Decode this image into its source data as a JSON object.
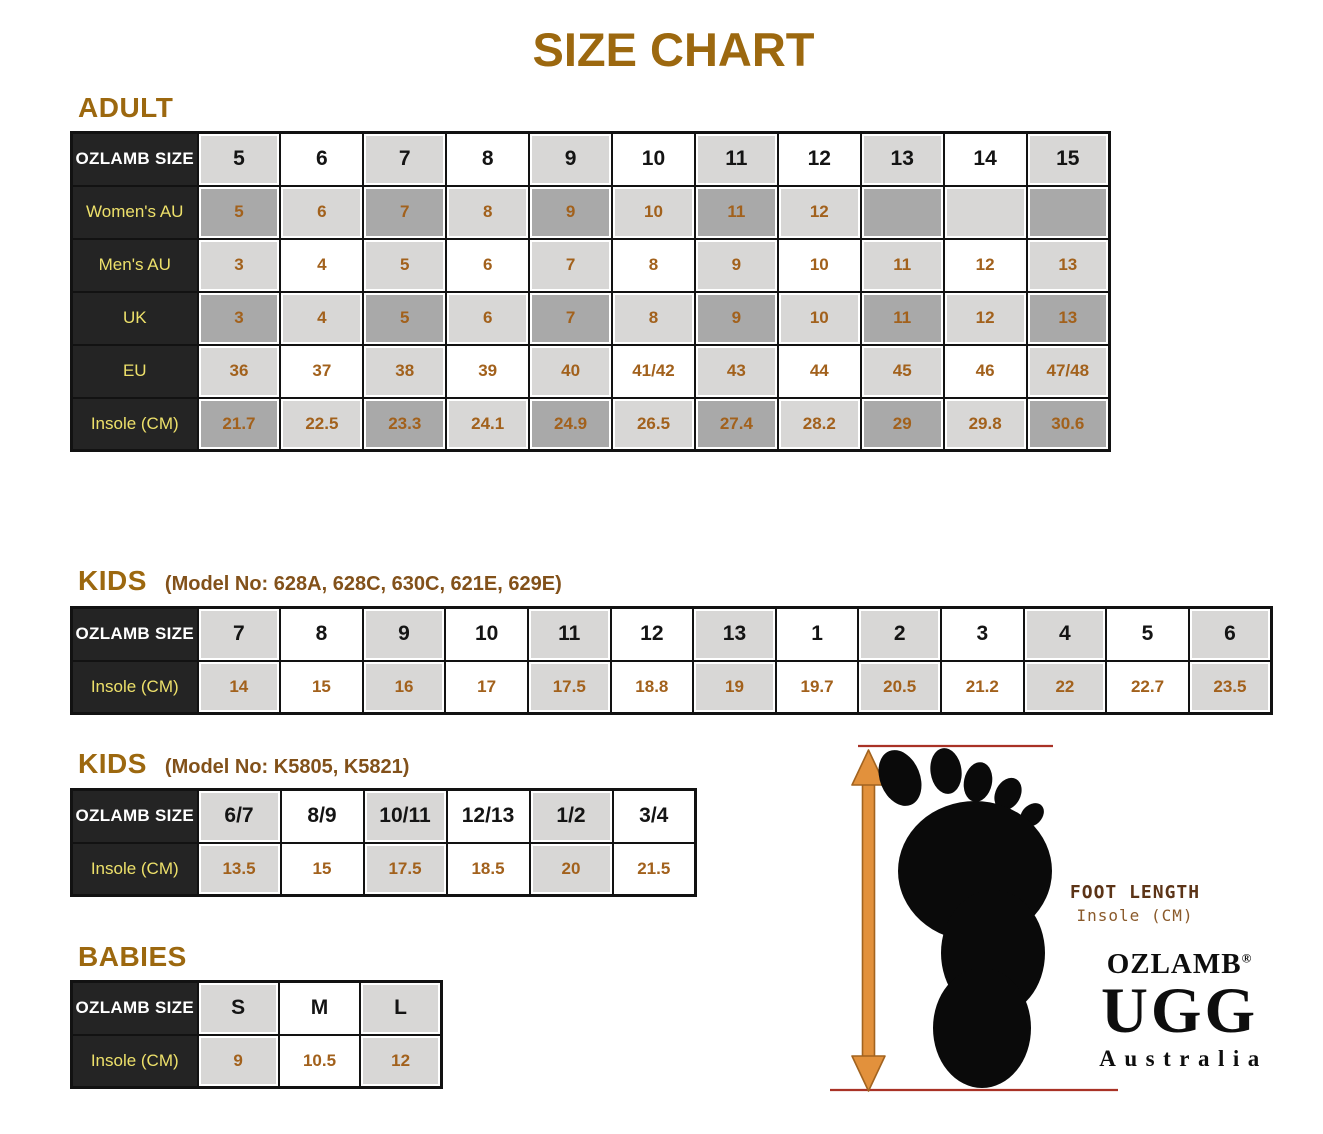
{
  "page": {
    "title": "SIZE CHART"
  },
  "colors": {
    "accent_brown": "#9C680F",
    "subheading_brown": "#82511A",
    "value_brown": "#A2611C",
    "label_yellow": "#EDE06A",
    "header_cell_black": "#242424",
    "cell_dark_gray": "#A9A9A9",
    "cell_light_gray": "#D8D7D6",
    "cell_white": "#FFFFFF",
    "arrow_orange": "#E2913C",
    "measure_line_red": "#A93226",
    "footprint_black": "#0A0A0A"
  },
  "sections": {
    "adult": {
      "heading": "ADULT",
      "table": {
        "header_label": "OZLAMB SIZE",
        "header_values": [
          "5",
          "6",
          "7",
          "8",
          "9",
          "10",
          "11",
          "12",
          "13",
          "14",
          "15"
        ],
        "rows": [
          {
            "label": "Women's AU",
            "shade": "dark",
            "values": [
              "5",
              "6",
              "7",
              "8",
              "9",
              "10",
              "11",
              "12",
              "",
              "",
              ""
            ]
          },
          {
            "label": "Men's AU",
            "shade": "light",
            "values": [
              "3",
              "4",
              "5",
              "6",
              "7",
              "8",
              "9",
              "10",
              "11",
              "12",
              "13"
            ]
          },
          {
            "label": "UK",
            "shade": "dark",
            "values": [
              "3",
              "4",
              "5",
              "6",
              "7",
              "8",
              "9",
              "10",
              "11",
              "12",
              "13"
            ]
          },
          {
            "label": "EU",
            "shade": "light",
            "values": [
              "36",
              "37",
              "38",
              "39",
              "40",
              "41/42",
              "43",
              "44",
              "45",
              "46",
              "47/48"
            ]
          },
          {
            "label": "Insole (CM)",
            "shade": "dark",
            "values": [
              "21.7",
              "22.5",
              "23.3",
              "24.1",
              "24.9",
              "26.5",
              "27.4",
              "28.2",
              "29",
              "29.8",
              "30.6"
            ]
          }
        ]
      }
    },
    "kids_a": {
      "heading": "KIDS",
      "subheading": "(Model No: 628A, 628C, 630C, 621E, 629E)",
      "table": {
        "header_label": "OZLAMB SIZE",
        "header_values": [
          "7",
          "8",
          "9",
          "10",
          "11",
          "12",
          "13",
          "1",
          "2",
          "3",
          "4",
          "5",
          "6"
        ],
        "rows": [
          {
            "label": "Insole (CM)",
            "shade": "light",
            "values": [
              "14",
              "15",
              "16",
              "17",
              "17.5",
              "18.8",
              "19",
              "19.7",
              "20.5",
              "21.2",
              "22",
              "22.7",
              "23.5"
            ]
          }
        ]
      }
    },
    "kids_b": {
      "heading": "KIDS",
      "subheading": "(Model No: K5805, K5821)",
      "table": {
        "header_label": "OZLAMB SIZE",
        "header_values": [
          "6/7",
          "8/9",
          "10/11",
          "12/13",
          "1/2",
          "3/4"
        ],
        "rows": [
          {
            "label": "Insole (CM)",
            "shade": "light",
            "values": [
              "13.5",
              "15",
              "17.5",
              "18.5",
              "20",
              "21.5"
            ]
          }
        ]
      }
    },
    "babies": {
      "heading": "BABIES",
      "table": {
        "header_label": "OZLAMB SIZE",
        "header_values": [
          "S",
          "M",
          "L"
        ],
        "rows": [
          {
            "label": "Insole (CM)",
            "shade": "light",
            "values": [
              "9",
              "10.5",
              "12"
            ]
          }
        ]
      }
    }
  },
  "figure": {
    "foot_length_label": "FOOT LENGTH",
    "insole_label": "Insole (CM)",
    "brand_line1": "OZLAMB",
    "brand_reg": "®",
    "brand_line2": "UGG",
    "brand_line3": "Australia"
  }
}
